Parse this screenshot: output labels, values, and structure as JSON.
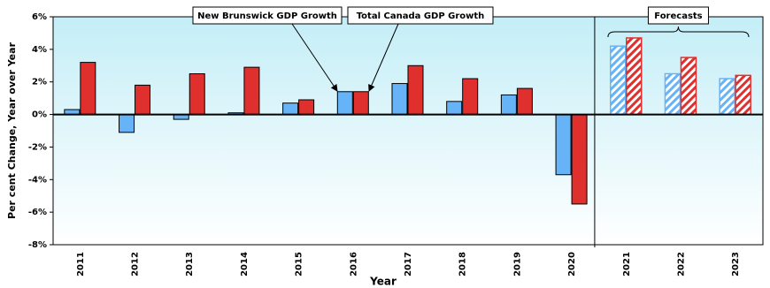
{
  "chart_data": {
    "type": "bar",
    "x_label": "Year",
    "y_label": "Per cent Change, Year over Year",
    "categories": [
      "2011",
      "2012",
      "2013",
      "2014",
      "2015",
      "2016",
      "2017",
      "2018",
      "2019",
      "2020",
      "2021",
      "2022",
      "2023"
    ],
    "series": [
      {
        "name": "New Brunswick GDP Growth",
        "color": "#66b3f7",
        "values": [
          0.3,
          -1.1,
          -0.3,
          0.1,
          0.7,
          1.4,
          1.9,
          0.8,
          1.2,
          -3.7,
          4.2,
          2.5,
          2.2
        ]
      },
      {
        "name": "Total Canada GDP Growth",
        "color": "#e0302e",
        "values": [
          3.2,
          1.8,
          2.5,
          2.9,
          0.9,
          1.4,
          3.0,
          2.2,
          1.6,
          -5.5,
          4.7,
          3.5,
          2.4
        ]
      }
    ],
    "hatched": [
      false,
      false,
      false,
      false,
      false,
      false,
      false,
      false,
      false,
      false,
      true,
      true,
      true
    ],
    "annotation": "Forecasts",
    "ylim": [
      -8,
      6
    ],
    "yticks": [
      {
        "value": -8,
        "label": "-8%"
      },
      {
        "value": -6,
        "label": "-6%"
      },
      {
        "value": -4,
        "label": "-4%"
      },
      {
        "value": -2,
        "label": "-2%"
      },
      {
        "value": 0,
        "label": "0%"
      },
      {
        "value": 2,
        "label": "2%"
      },
      {
        "value": 4,
        "label": "4%"
      },
      {
        "value": 6,
        "label": "6%"
      }
    ],
    "legend": "callout"
  }
}
